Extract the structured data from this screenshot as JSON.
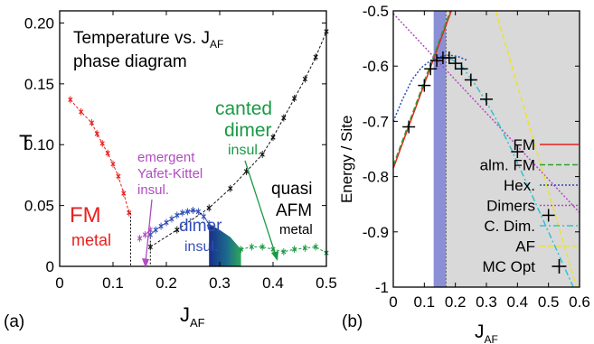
{
  "chart_data": [
    {
      "panel_label": "(a)",
      "type": "scatter",
      "title_line1": "Temperature vs. J",
      "title_line1_sub": "AF",
      "title_line2": "phase diagram",
      "xlabel": "J",
      "xlabel_sub": "AF",
      "ylabel": "T",
      "xlim": [
        0,
        0.5
      ],
      "ylim": [
        0,
        0.21
      ],
      "xticks": [
        "0",
        "0.1",
        "0.2",
        "0.3",
        "0.4",
        "0.5"
      ],
      "yticks": [
        "0",
        "0.05",
        "0.10",
        "0.15",
        "0.20"
      ],
      "colors": {
        "fm": "#e8211f",
        "dimer": "#3350b8",
        "canted": "#1a9a45",
        "afm": "#111111",
        "yafet": "#b04cc0"
      },
      "annotations": {
        "fm_1": "FM",
        "fm_2": "metal",
        "yafet_1": "emergent",
        "yafet_2": "Yafet-Kittel",
        "yafet_3": "insul.",
        "canted_1": "canted",
        "canted_2": "dimer",
        "canted_3": "insul.",
        "dimer_1": "dimer",
        "dimer_2": "insul.",
        "afm_1": "quasi",
        "afm_2": "AFM",
        "afm_3": "metal"
      },
      "series": [
        {
          "key": "fm",
          "x": [
            0.02,
            0.04,
            0.06,
            0.07,
            0.08,
            0.09,
            0.1,
            0.11,
            0.12,
            0.13
          ],
          "y": [
            0.137,
            0.127,
            0.118,
            0.109,
            0.101,
            0.093,
            0.084,
            0.074,
            0.06,
            0.044
          ]
        },
        {
          "key": "yafet",
          "x": [
            0.15,
            0.16,
            0.17
          ],
          "y": [
            0.023,
            0.026,
            0.03
          ]
        },
        {
          "key": "dimer",
          "x": [
            0.17,
            0.18,
            0.19,
            0.2,
            0.21,
            0.22,
            0.23,
            0.24,
            0.25,
            0.26,
            0.27,
            0.28
          ],
          "y": [
            0.026,
            0.03,
            0.033,
            0.036,
            0.039,
            0.042,
            0.044,
            0.045,
            0.046,
            0.045,
            0.041,
            0.035
          ]
        },
        {
          "key": "canted",
          "x": [
            0.34,
            0.36,
            0.38,
            0.4,
            0.42,
            0.44,
            0.46,
            0.48,
            0.5
          ],
          "y": [
            0.014,
            0.016,
            0.016,
            0.014,
            0.012,
            0.014,
            0.015,
            0.016,
            0.011
          ]
        },
        {
          "key": "afm",
          "x": [
            0.17,
            0.22,
            0.28,
            0.32,
            0.35,
            0.38,
            0.4,
            0.42,
            0.44,
            0.46,
            0.48,
            0.5
          ],
          "y": [
            0.016,
            0.03,
            0.048,
            0.064,
            0.078,
            0.092,
            0.106,
            0.122,
            0.138,
            0.154,
            0.172,
            0.193
          ]
        }
      ]
    },
    {
      "panel_label": "(b)",
      "type": "line",
      "xlabel": "J",
      "xlabel_sub": "AF",
      "ylabel": "Energy / Site",
      "xlim": [
        0,
        0.6
      ],
      "ylim": [
        -1,
        -0.5
      ],
      "xticks": [
        "0",
        "0.1",
        "0.2",
        "0.3",
        "0.4",
        "0.5",
        "0.6"
      ],
      "yticks": [
        "-1",
        "-0.9",
        "-0.8",
        "-0.7",
        "-0.6",
        "-0.5"
      ],
      "series": [
        {
          "name": "FM",
          "color": "#e8211f",
          "style": "solid",
          "x": [
            0,
            0.2
          ],
          "y": [
            -0.785,
            -0.48
          ]
        },
        {
          "name": "alm. FM",
          "color": "#2ea02e",
          "style": "dashed",
          "x": [
            0,
            0.2
          ],
          "y": [
            -0.78,
            -0.475
          ]
        },
        {
          "name": "Hex.",
          "color": "#2b4db0",
          "style": "dotted",
          "x": [
            0,
            0.03,
            0.06,
            0.09,
            0.12,
            0.15,
            0.18,
            0.21,
            0.24
          ],
          "y": [
            -0.7,
            -0.66,
            -0.625,
            -0.603,
            -0.59,
            -0.583,
            -0.58,
            -0.583,
            -0.59
          ]
        },
        {
          "name": "Dimers",
          "color": "#b04cc0",
          "style": "dotted",
          "x": [
            0,
            0.6
          ],
          "y": [
            -0.505,
            -0.865
          ]
        },
        {
          "name": "C. Dim.",
          "color": "#33c2cf",
          "style": "dashdot",
          "x": [
            0.18,
            0.22,
            0.26,
            0.3,
            0.34,
            0.38,
            0.42,
            0.46,
            0.5,
            0.54,
            0.58
          ],
          "y": [
            -0.585,
            -0.6,
            -0.63,
            -0.665,
            -0.705,
            -0.75,
            -0.8,
            -0.85,
            -0.9,
            -0.95,
            -1.0
          ]
        },
        {
          "name": "AF",
          "color": "#ede230",
          "style": "dashed",
          "x": [
            0.33,
            0.59
          ],
          "y": [
            -0.5,
            -1.0
          ]
        },
        {
          "name": "MC Opt",
          "color": "#000000",
          "style": "markers",
          "x": [
            0.05,
            0.1,
            0.12,
            0.14,
            0.16,
            0.18,
            0.2,
            0.22,
            0.25,
            0.3,
            0.4,
            0.5
          ],
          "y": [
            -0.71,
            -0.635,
            -0.605,
            -0.59,
            -0.585,
            -0.585,
            -0.595,
            -0.605,
            -0.625,
            -0.66,
            -0.755,
            -0.87
          ]
        }
      ],
      "shaded_regions": [
        {
          "label": "",
          "x0": 0.13,
          "x1": 0.17,
          "color": "#8b8fd6"
        },
        {
          "label": "",
          "x0": 0.17,
          "x1": 0.6,
          "color": "#d9d9d9"
        }
      ]
    }
  ]
}
